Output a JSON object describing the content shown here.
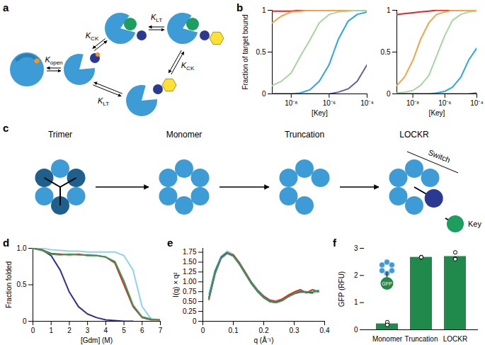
{
  "panel_labels": [
    "a",
    "b",
    "c",
    "d",
    "e",
    "f"
  ],
  "diagrams": {
    "a": {
      "labels": [
        {
          "text": "K",
          "sub": "open"
        },
        {
          "text": "K",
          "sub": "CK"
        },
        {
          "text": "K",
          "sub": "LT"
        },
        {
          "text": "K",
          "sub": "LT"
        },
        {
          "text": "K",
          "sub": "CK"
        }
      ]
    },
    "c": {
      "stages": [
        "Trimer",
        "Monomer",
        "Truncation",
        "LOCKR"
      ],
      "labels": [
        "Switch",
        "Key"
      ]
    }
  },
  "chart_data": [
    {
      "type": "line",
      "log": "x",
      "xlabel": "[Key]",
      "ylabel": "Fraction of target bound",
      "x": [
        1e-09,
        3e-09,
        1e-08,
        3e-08,
        1e-07,
        3e-07,
        1e-06,
        3e-06,
        1e-05,
        3e-05,
        0.0001
      ],
      "xlim": [
        1e-09,
        0.0001
      ],
      "xticks": [
        {
          "value": 1e-08,
          "label": "10⁻⁸"
        },
        {
          "value": 1e-06,
          "label": "10⁻⁶"
        },
        {
          "value": 0.0001,
          "label": "10⁻⁴"
        }
      ],
      "ylim": [
        0,
        1
      ],
      "yticks": [
        0,
        0.5,
        1
      ],
      "series": [
        {
          "color": "#e8261f",
          "values": [
            0.99,
            0.99,
            0.99,
            1,
            1,
            1,
            1,
            1,
            1,
            1,
            1
          ]
        },
        {
          "color": "#f7a14a",
          "values": [
            0.85,
            0.93,
            0.98,
            0.99,
            1,
            1,
            1,
            1,
            1,
            1,
            1
          ]
        },
        {
          "color": "#a6d6a0",
          "values": [
            0.1,
            0.15,
            0.25,
            0.45,
            0.65,
            0.85,
            0.95,
            0.98,
            0.99,
            1,
            1
          ]
        },
        {
          "color": "#2ba7e0",
          "values": [
            0,
            0,
            0,
            0.01,
            0.05,
            0.15,
            0.35,
            0.65,
            0.87,
            0.95,
            0.98
          ]
        },
        {
          "color": "#6b5aa8",
          "values": [
            0,
            0,
            0,
            0,
            0,
            0,
            0,
            0.02,
            0.06,
            0.15,
            0.35
          ]
        }
      ]
    },
    {
      "type": "line",
      "log": "x",
      "xlabel": "[Key]",
      "x": [
        1e-09,
        3e-09,
        1e-08,
        3e-08,
        1e-07,
        3e-07,
        1e-06,
        3e-06,
        1e-05,
        3e-05,
        0.0001
      ],
      "xlim": [
        1e-09,
        0.0001
      ],
      "xticks": [
        {
          "value": 1e-08,
          "label": "10⁻⁸"
        },
        {
          "value": 1e-06,
          "label": "10⁻⁶"
        },
        {
          "value": 0.0001,
          "label": "10⁻⁴"
        }
      ],
      "ylim": [
        0,
        1
      ],
      "yticks": [
        0,
        0.5,
        1
      ],
      "series": [
        {
          "color": "#e8261f",
          "values": [
            0.95,
            0.96,
            0.97,
            0.98,
            0.99,
            1,
            1,
            1,
            1,
            1,
            1
          ]
        },
        {
          "color": "#f7a14a",
          "values": [
            0.1,
            0.2,
            0.4,
            0.65,
            0.85,
            0.95,
            0.98,
            1,
            1,
            1,
            1
          ]
        },
        {
          "color": "#a6d6a0",
          "values": [
            0.01,
            0.02,
            0.04,
            0.1,
            0.22,
            0.45,
            0.7,
            0.88,
            0.95,
            0.98,
            0.99
          ]
        },
        {
          "color": "#2ba7e0",
          "values": [
            0,
            0,
            0,
            0,
            0,
            0.01,
            0.03,
            0.08,
            0.2,
            0.4,
            0.55
          ]
        },
        {
          "color": "#6b5aa8",
          "values": [
            0,
            0,
            0,
            0,
            0,
            0,
            0,
            0,
            0,
            0,
            0.01
          ]
        }
      ]
    },
    {
      "type": "line",
      "xlabel": "[Gdm] (M)",
      "ylabel": "Fraction folded",
      "x": [
        0,
        0.5,
        1,
        1.5,
        2,
        2.5,
        3,
        3.5,
        4,
        4.5,
        5,
        5.5,
        6,
        6.5,
        7
      ],
      "xlim": [
        0,
        7
      ],
      "xticks": [
        0,
        1,
        2,
        3,
        4,
        5,
        6,
        7
      ],
      "ylim": [
        0,
        1
      ],
      "yticks": [
        0,
        0.5,
        {
          "value": 1,
          "label": "1.0"
        }
      ],
      "series": [
        {
          "color": "#2e3192",
          "values": [
            1,
            0.98,
            0.9,
            0.7,
            0.4,
            0.2,
            0.1,
            0.05,
            0.02,
            0.01,
            0,
            0,
            null,
            null,
            null
          ]
        },
        {
          "color": "#8fd3ec",
          "values": [
            1,
            1,
            0.98,
            0.97,
            0.96,
            0.96,
            0.95,
            0.95,
            0.95,
            0.95,
            0.9,
            0.7,
            0.2,
            0.03,
            null
          ]
        },
        {
          "color": "#e8261f",
          "values": [
            1,
            0.98,
            0.93,
            0.92,
            0.91,
            0.92,
            0.9,
            0.9,
            0.88,
            0.8,
            0.5,
            0.2,
            0.05,
            0.02,
            0.02
          ]
        },
        {
          "color": "#2e9e58",
          "values": [
            1,
            0.97,
            0.92,
            0.91,
            0.92,
            0.91,
            0.91,
            0.9,
            0.88,
            0.82,
            0.55,
            0.22,
            0.06,
            0.03,
            0.02
          ]
        }
      ]
    },
    {
      "type": "line",
      "xlabel": "q (Å⁻¹)",
      "ylabel": "I(q) × q²",
      "x": [
        0.02,
        0.04,
        0.06,
        0.08,
        0.1,
        0.12,
        0.14,
        0.16,
        0.18,
        0.2,
        0.22,
        0.24,
        0.26,
        0.28,
        0.3,
        0.32,
        0.34,
        0.36,
        0.38
      ],
      "xlim": [
        0,
        0.4
      ],
      "xticks": [
        0,
        0.1,
        0.2,
        0.3,
        0.4
      ],
      "ylim": [
        0,
        1.85
      ],
      "yticks": [
        0,
        0.25,
        {
          "value": 0.5,
          "label": "0.50"
        },
        0.75,
        {
          "value": 1,
          "label": "1.00"
        },
        1.25,
        {
          "value": 1.5,
          "label": "1.50"
        },
        1.75
      ],
      "series": [
        {
          "color": "#8fd3ec",
          "values": [
            0.7,
            1.3,
            1.65,
            1.78,
            1.7,
            1.5,
            1.25,
            1.0,
            0.8,
            0.65,
            0.55,
            0.52,
            0.56,
            0.65,
            0.72,
            0.75,
            0.73,
            0.72,
            0.74
          ]
        },
        {
          "color": "#2e3192",
          "values": [
            0.6,
            1.25,
            1.62,
            1.74,
            1.66,
            1.45,
            1.2,
            0.95,
            0.75,
            0.6,
            0.5,
            0.48,
            0.53,
            0.62,
            0.7,
            0.74,
            0.74,
            0.72,
            null
          ]
        },
        {
          "color": "#e8261f",
          "values": [
            0.55,
            1.2,
            1.6,
            1.73,
            1.68,
            1.48,
            1.23,
            0.98,
            0.78,
            0.63,
            0.53,
            0.5,
            0.56,
            0.66,
            0.74,
            0.8,
            0.72,
            0.8,
            0.75
          ]
        },
        {
          "color": "#2e9e58",
          "values": [
            0.58,
            1.22,
            1.6,
            1.72,
            1.65,
            1.45,
            1.2,
            0.96,
            0.76,
            0.6,
            0.5,
            0.47,
            0.52,
            0.62,
            0.7,
            0.76,
            0.75,
            0.74,
            0.78
          ]
        }
      ]
    },
    {
      "type": "bar",
      "ylabel": "GFP (RFU)",
      "categories": [
        "Monomer",
        "Truncation",
        "LOCKR"
      ],
      "values": [
        0.22,
        2.67,
        2.7
      ],
      "replicates": [
        [
          0.2,
          0.28,
          0.18
        ],
        [
          2.66,
          2.68,
          2.67
        ],
        [
          2.85,
          2.62,
          2.6
        ]
      ],
      "color": "#1f8a4c",
      "ylim": [
        0,
        3
      ],
      "yticks": [
        0,
        1,
        2,
        3
      ],
      "annotations": [
        "GFP"
      ]
    }
  ]
}
